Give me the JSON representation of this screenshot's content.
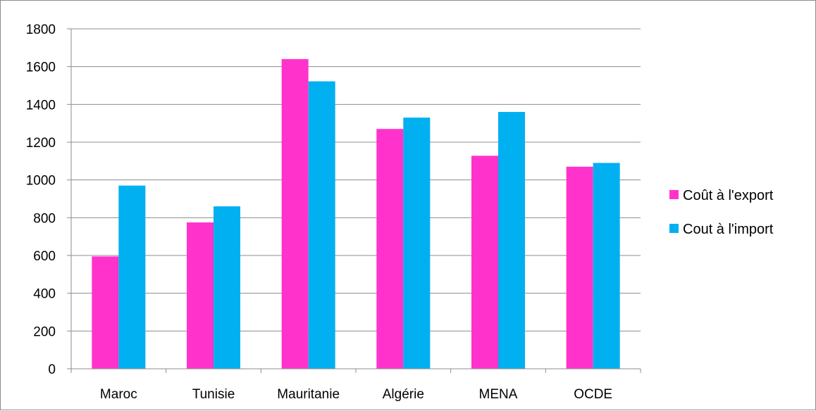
{
  "chart_data": {
    "type": "bar",
    "categories": [
      "Maroc",
      "Tunisie",
      "Mauritanie",
      "Algérie",
      "MENA",
      "OCDE"
    ],
    "series": [
      {
        "name": "Coût à l'export",
        "color": "#ff33cc",
        "values": [
          595,
          775,
          1640,
          1270,
          1128,
          1070
        ]
      },
      {
        "name": "Cout à l'import",
        "color": "#00b0f0",
        "values": [
          970,
          860,
          1522,
          1330,
          1360,
          1090
        ]
      }
    ],
    "yticks": [
      0,
      200,
      400,
      600,
      800,
      1000,
      1200,
      1400,
      1600,
      1800
    ],
    "ylim": [
      0,
      1800
    ],
    "grid": true,
    "legend_position": "right"
  }
}
